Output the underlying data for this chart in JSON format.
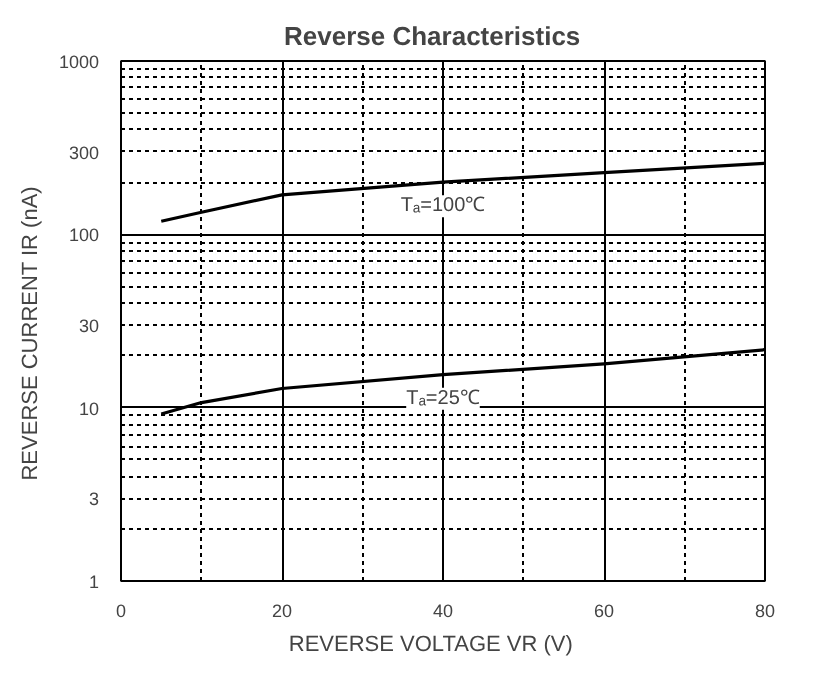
{
  "chart_data": {
    "type": "line",
    "title": "Reverse    Characteristics",
    "xlabel": "REVERSE VOLTAGE   VR   (V)",
    "ylabel": "REVERSE CURRENT   IR   (nA)",
    "x": [
      5,
      10,
      20,
      40,
      60,
      80
    ],
    "series": [
      {
        "color": "#000000",
        "values": [
          119,
          134,
          169,
          200,
          227,
          257
        ]
      },
      {
        "color": "#000000",
        "values": [
          9.2,
          10.7,
          12.9,
          15.5,
          17.9,
          21.6
        ]
      }
    ],
    "annotations": [
      "Tₐ=100℃",
      "Tₐ=25℃"
    ],
    "xlim": [
      0,
      80
    ],
    "xticks": [
      0,
      20,
      40,
      60,
      80
    ],
    "ylim": [
      1,
      1000
    ],
    "yticks": [
      1,
      3,
      10,
      30,
      100,
      300,
      1000
    ],
    "log": "y",
    "grid": true,
    "line_style": "solid"
  }
}
